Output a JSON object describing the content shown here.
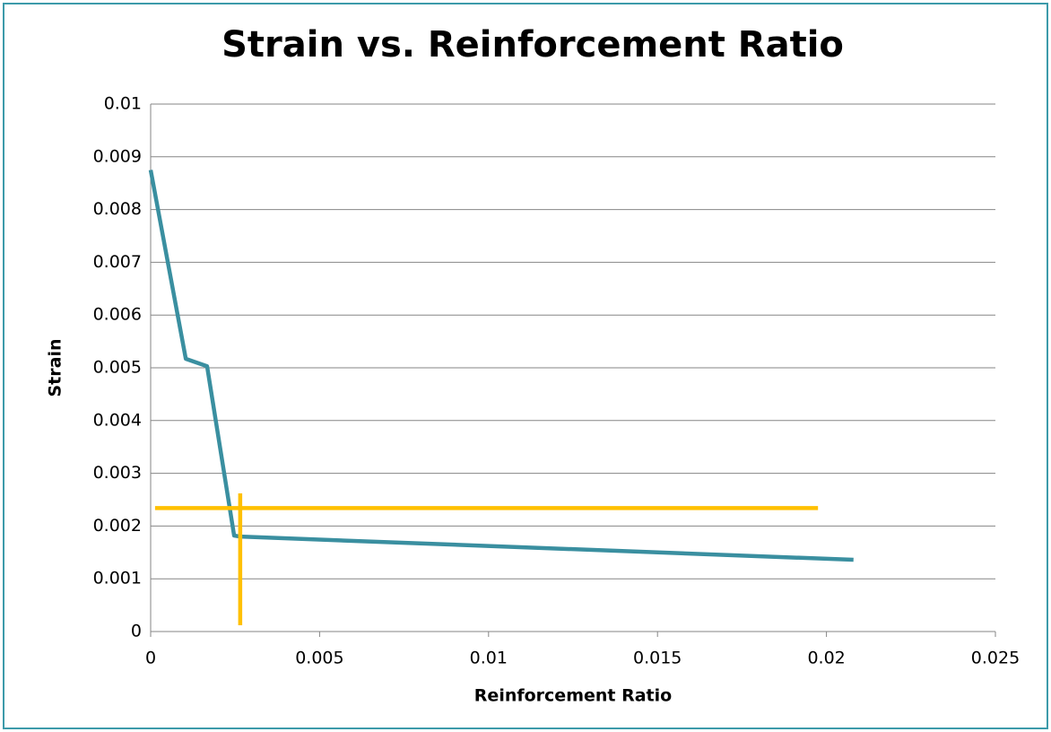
{
  "chart_data": {
    "type": "line",
    "title": "Strain vs. Reinforcement Ratio",
    "x_label": "Reinforcement Ratio",
    "y_label": "Strain",
    "xlim": [
      0,
      0.025
    ],
    "xticks": [
      0,
      0.005,
      0.01,
      0.015,
      0.02,
      0.025
    ],
    "ylim": [
      0,
      0.01
    ],
    "yticks": [
      0,
      0.001,
      0.002,
      0.003,
      0.004,
      0.005,
      0.006,
      0.007,
      0.008,
      0.009,
      0.01
    ],
    "grid": true,
    "series": [
      {
        "color": "#3a8fa0",
        "x": [
          0,
          0.00104,
          0.00167,
          0.00247,
          0.00265,
          0.0208
        ],
        "values": [
          0.00875,
          0.00517,
          0.00503,
          0.00182,
          0.0018,
          0.00136
        ]
      },
      {
        "color": "#ffc000",
        "x": [
          0.00013,
          0.01975
        ],
        "values": [
          0.00234,
          0.00234
        ]
      },
      {
        "color": "#ffc000",
        "x": [
          0.00265,
          0.00265
        ],
        "values": [
          0.00262,
          0.00012
        ]
      }
    ]
  }
}
